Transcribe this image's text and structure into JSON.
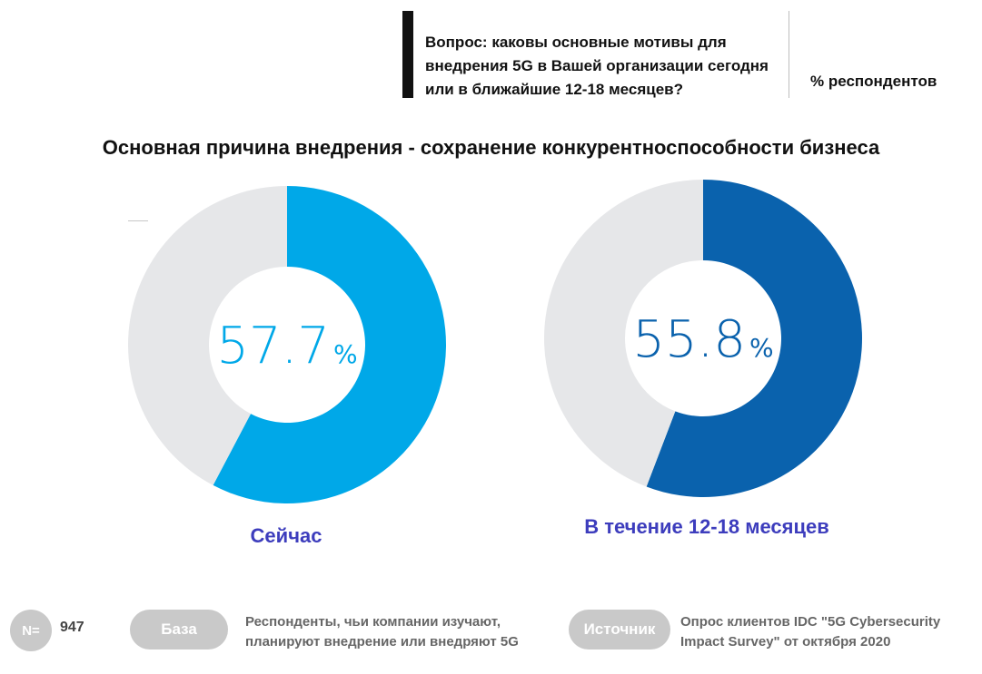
{
  "question": {
    "text": "Вопрос: каковы основные мотивы  для внедрения 5G в Вашей организации сегодня или в ближайшие 12-18 месяцев?",
    "unit": "% респондентов"
  },
  "subtitle": "Основная причина внедрения - сохранение конкурентноспособности бизнеса",
  "chart_data": [
    {
      "type": "pie",
      "variant": "donut",
      "title": "Сейчас",
      "value": 57.7,
      "value_label": "57.7",
      "unit": "%",
      "slices": [
        {
          "label": "Сейчас",
          "value": 57.7,
          "color": "#00a8e8"
        },
        {
          "label": "",
          "value": 42.3,
          "color": "#e6e7e9"
        }
      ]
    },
    {
      "type": "pie",
      "variant": "donut",
      "title": "В течение 12-18 месяцев",
      "value": 55.8,
      "value_label": "55.8",
      "unit": "%",
      "slices": [
        {
          "label": "В течение 12-18 месяцев",
          "value": 55.8,
          "color": "#0a62ad"
        },
        {
          "label": "",
          "value": 44.2,
          "color": "#e6e7e9"
        }
      ]
    }
  ],
  "footer": {
    "n_label": "N=",
    "n_value": "947",
    "base_label": "База",
    "base_text_line1": "Респонденты, чьи компании изучают,",
    "base_text_line2": "планируют внедрение или внедряют 5G",
    "source_label": "Источник",
    "source_text_line1": "Опрос клиентов IDC \"5G Cybersecurity",
    "source_text_line2": "Impact Survey\" от октября 2020"
  },
  "colors": {
    "caption": "#3d3dbd",
    "pill": "#c9c9c9"
  }
}
